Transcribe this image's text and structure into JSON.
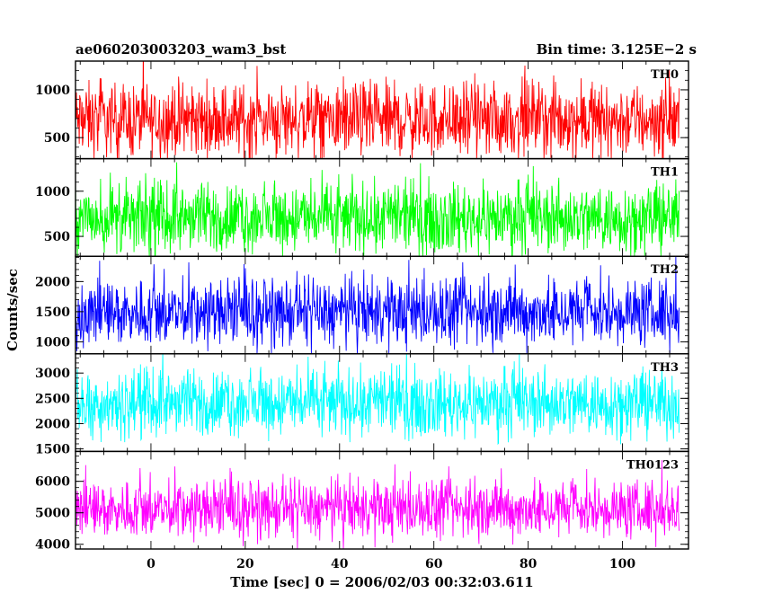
{
  "header": {
    "left_title": "ae060203003203_wam3_bst",
    "right_title": "Bin time: 3.125E−2 s"
  },
  "chart_data": {
    "type": "line",
    "xlabel": "Time [sec] 0 = 2006/02/03 00:32:03.611",
    "ylabel": "Counts/sec",
    "xlim": [
      -16,
      114
    ],
    "x_ticks": [
      0,
      20,
      40,
      60,
      80,
      100
    ],
    "x_tick_labels": [
      "0",
      "20",
      "40",
      "60",
      "80",
      "100"
    ],
    "data_x_range": [
      -16,
      112
    ],
    "bin_time_s": 0.03125,
    "panels": [
      {
        "name": "TH0",
        "color": "#ff0000",
        "ylim": [
          280,
          1300
        ],
        "yticks": [
          500,
          1000
        ],
        "ytick_labels": [
          "500",
          "1000"
        ],
        "mean": 680,
        "spread": 360,
        "low_clip": 280
      },
      {
        "name": "TH1",
        "color": "#00ff00",
        "ylim": [
          280,
          1360
        ],
        "yticks": [
          500,
          1000
        ],
        "ytick_labels": [
          "500",
          "1000"
        ],
        "mean": 700,
        "spread": 360,
        "low_clip": 280
      },
      {
        "name": "TH2",
        "color": "#0000ff",
        "ylim": [
          800,
          2420
        ],
        "yticks": [
          1000,
          1500,
          2000
        ],
        "ytick_labels": [
          "1000",
          "1500",
          "2000"
        ],
        "mean": 1480,
        "spread": 520,
        "low_clip": 800
      },
      {
        "name": "TH3",
        "color": "#00ffff",
        "ylim": [
          1450,
          3380
        ],
        "yticks": [
          1500,
          2000,
          2500,
          3000
        ],
        "ytick_labels": [
          "1500",
          "2000",
          "2500",
          "3000"
        ],
        "mean": 2400,
        "spread": 620,
        "low_clip": 1450
      },
      {
        "name": "TH0123",
        "color": "#ff00ff",
        "ylim": [
          3850,
          6950
        ],
        "yticks": [
          4000,
          5000,
          6000
        ],
        "ytick_labels": [
          "4000",
          "5000",
          "6000"
        ],
        "mean": 5100,
        "spread": 850,
        "low_clip": 3850
      }
    ]
  }
}
